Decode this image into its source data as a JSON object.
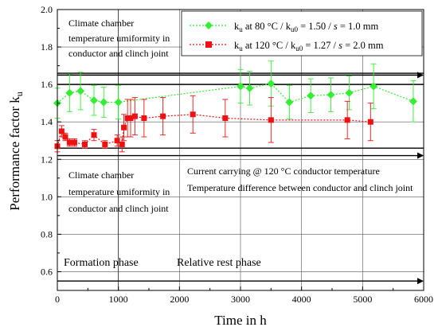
{
  "chart_data": {
    "type": "scatter",
    "xlabel": "Time in h",
    "ylabel_main": "Performance factor k",
    "ylabel_sub": "u",
    "xlim": [
      0,
      6000
    ],
    "ylim": [
      0.5,
      2.0
    ],
    "xticks": [
      "0",
      "1000",
      "2000",
      "3000",
      "4000",
      "5000",
      "6000"
    ],
    "yticks": [
      "0.6",
      "0.8",
      "1.0",
      "1.2",
      "1.4",
      "1.6",
      "1.8",
      "2.0"
    ],
    "grid": true,
    "legend_position": "top-right",
    "series": [
      {
        "name": "k_u at 80 °C / k_u0 = 1.50 / s = 1.0 mm",
        "legend": {
          "k": "k",
          "sub": "u",
          "mid": " at 80 °C / k",
          "sub2": "u0",
          "tail": " = 1.50 / ",
          "s": "s",
          "end": " = 1.0 mm"
        },
        "color": "#33ee33",
        "marker": "diamond",
        "x": [
          0,
          200,
          380,
          600,
          760,
          1000,
          3000,
          3150,
          3500,
          3800,
          4150,
          4480,
          4780,
          5180,
          5830
        ],
        "y": [
          1.5,
          1.555,
          1.565,
          1.515,
          1.505,
          1.505,
          1.59,
          1.58,
          1.605,
          1.505,
          1.54,
          1.545,
          1.555,
          1.59,
          1.51
        ],
        "err": [
          0.08,
          0.1,
          0.1,
          0.08,
          0.08,
          0.09,
          0.09,
          0.09,
          0.12,
          0.09,
          0.09,
          0.09,
          0.09,
          0.12,
          0.11
        ]
      },
      {
        "name": "k_u at 120 °C / k_u0 = 1.27 / s = 2.0 mm",
        "legend": {
          "k": "k",
          "sub": "u",
          "mid": " at 120 °C / k",
          "sub2": "u0",
          "tail": " = 1.27 / ",
          "s": "s",
          "end": " = 2.0 mm"
        },
        "color": "#ee1111",
        "marker": "square",
        "x": [
          0,
          70,
          130,
          200,
          280,
          450,
          600,
          780,
          980,
          1060,
          1090,
          1150,
          1200,
          1270,
          1420,
          1730,
          2220,
          2750,
          3500,
          4750,
          5130
        ],
        "y": [
          1.27,
          1.35,
          1.32,
          1.29,
          1.29,
          1.28,
          1.33,
          1.28,
          1.3,
          1.28,
          1.37,
          1.42,
          1.42,
          1.43,
          1.42,
          1.43,
          1.44,
          1.42,
          1.41,
          1.41,
          1.4
        ],
        "err": [
          0.03,
          0.03,
          0.02,
          0.02,
          0.02,
          0.02,
          0.03,
          0.02,
          0.03,
          0.04,
          0.07,
          0.1,
          0.1,
          0.1,
          0.1,
          0.1,
          0.1,
          0.1,
          0.12,
          0.1,
          0.1
        ]
      }
    ],
    "reference_lines": [
      {
        "name": "upper-reference-line",
        "y": 1.66
      },
      {
        "name": "middle-reference-line",
        "y": 1.6
      },
      {
        "name": "lower-reference-line",
        "y": 1.26
      }
    ],
    "arrows": [
      {
        "name": "climate-arrow-upper",
        "y": 1.65,
        "x_from": 0,
        "x_to": 6000
      },
      {
        "name": "current-arrow",
        "y": 1.22,
        "x_from": 0,
        "x_to": 6000
      },
      {
        "name": "phase-arrow",
        "y": 0.55,
        "x_from": 0,
        "x_to": 6000
      }
    ],
    "vertical_markers": [
      1000
    ],
    "annotations": {
      "climate_top_1": "Climate chamber",
      "climate_top_2": "temperature umiformity in",
      "climate_top_3": "conductor and clinch joint",
      "climate_bottom_1": "Climate chamber",
      "climate_bottom_2": "temperature umiformity in",
      "climate_bottom_3": "conductor and clinch joint",
      "current_1": "Current carrying @ 120 °C conductor temperature",
      "current_2": "Temperature difference between conductor and clinch joint",
      "formation_phase": "Formation phase",
      "rest_phase": "Relative rest phase"
    }
  }
}
